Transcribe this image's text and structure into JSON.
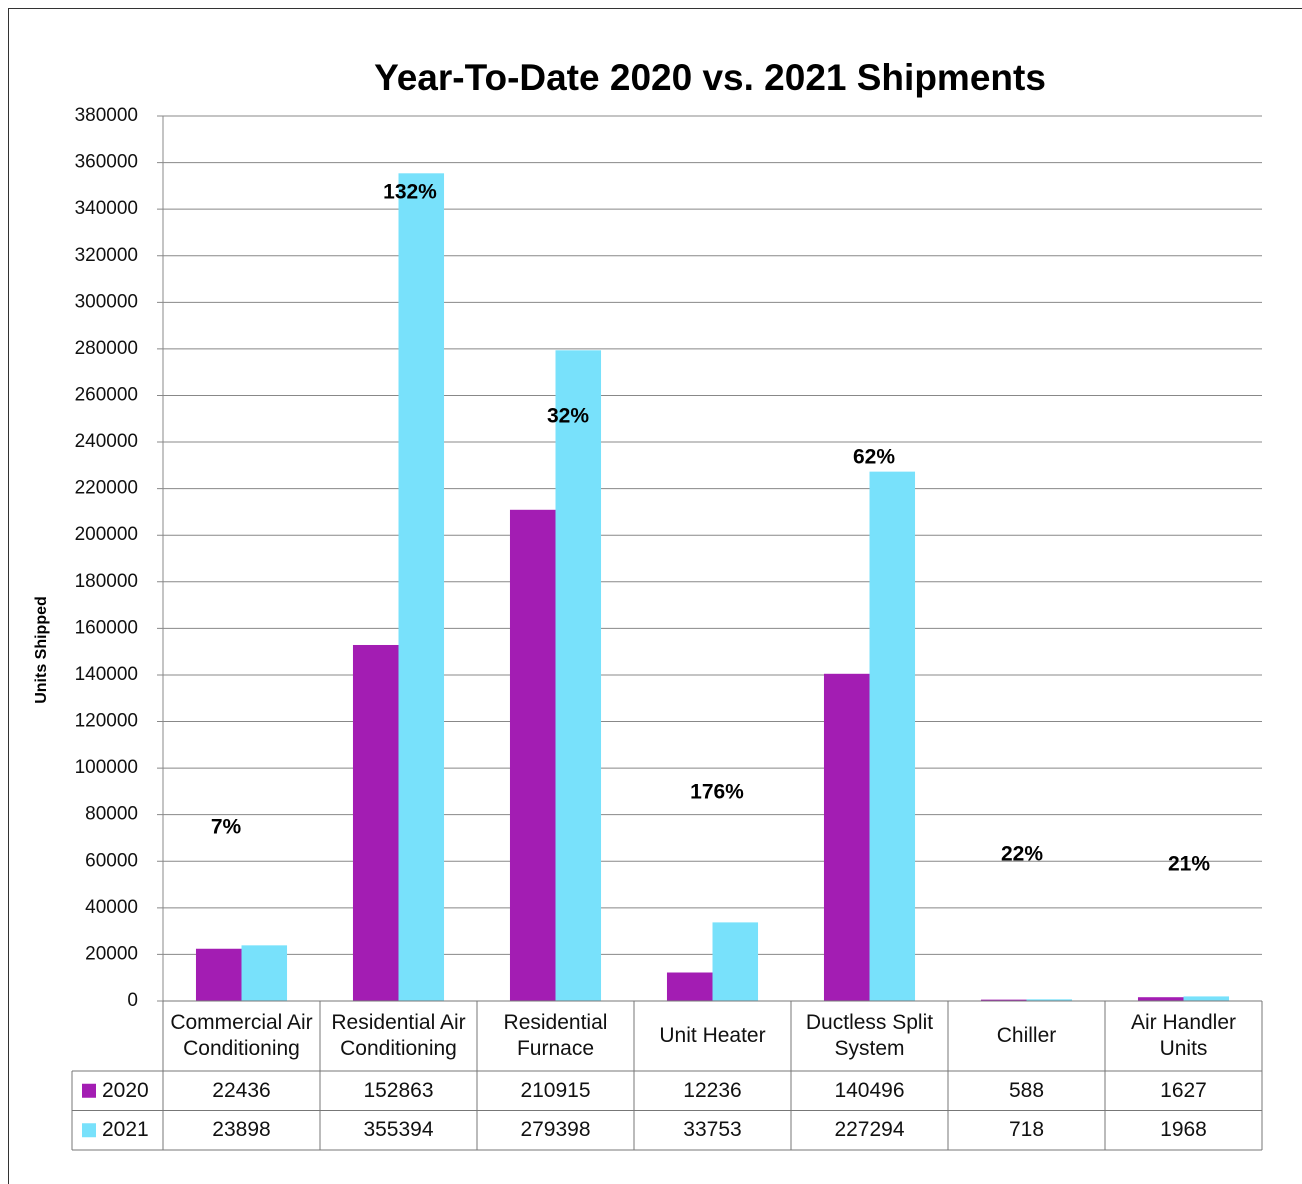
{
  "chart_data": {
    "type": "bar",
    "title": "Year-To-Date 2020 vs. 2021 Shipments",
    "y_label": "Units Shipped",
    "categories": [
      "Commercial Air Conditioning",
      "Residential Air Conditioning",
      "Residential Furnace",
      "Unit Heater",
      "Ductless Split System",
      "Chiller",
      "Air Handler Units"
    ],
    "series": [
      {
        "name": "2020",
        "color": "#a31db3",
        "values": [
          22436,
          152863,
          210915,
          12236,
          140496,
          588,
          1627
        ]
      },
      {
        "name": "2021",
        "color": "#78e1fb",
        "values": [
          23898,
          355394,
          279398,
          33753,
          227294,
          718,
          1968
        ]
      }
    ],
    "annotations": [
      "7%",
      "132%",
      "32%",
      "176%",
      "62%",
      "22%",
      "21%"
    ],
    "ylim": [
      0,
      380000
    ],
    "yticks": [
      0,
      20000,
      40000,
      60000,
      80000,
      100000,
      120000,
      140000,
      160000,
      180000,
      200000,
      220000,
      240000,
      260000,
      280000,
      300000,
      320000,
      340000,
      360000,
      380000
    ],
    "grid": true,
    "data_table": true
  }
}
